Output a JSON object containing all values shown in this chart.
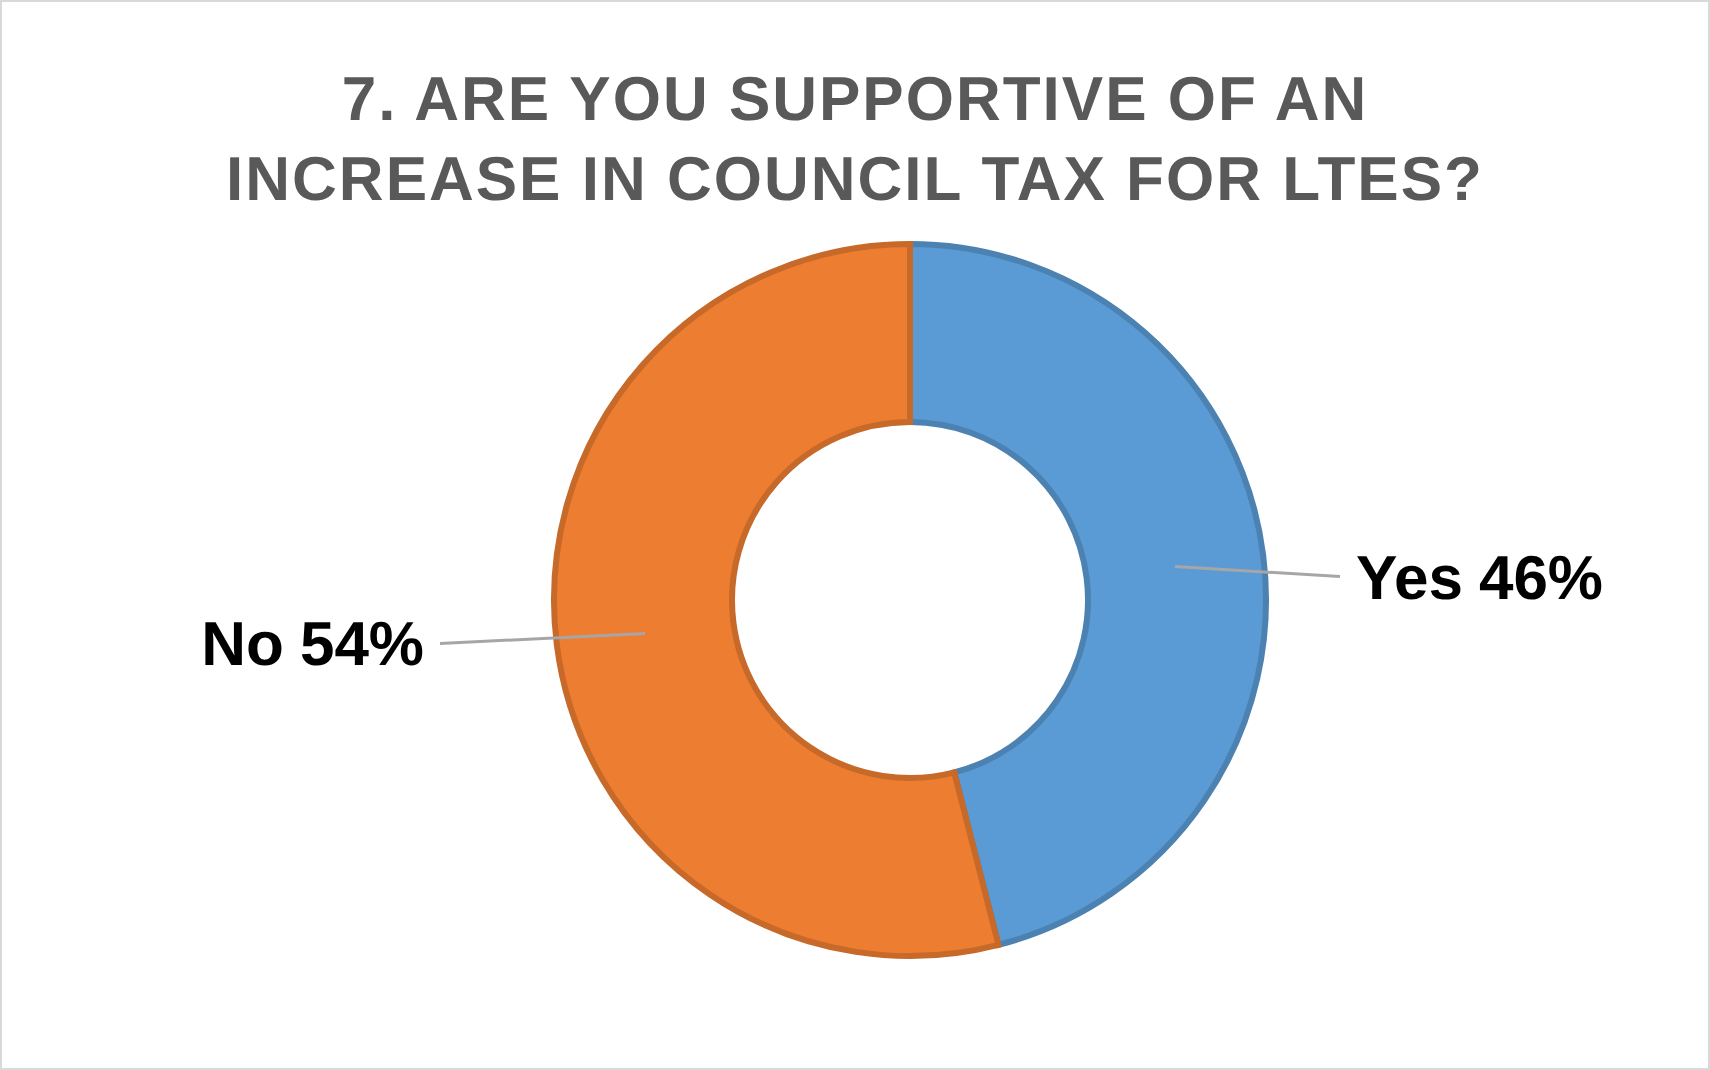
{
  "chart_data": {
    "type": "donut",
    "title": "7. ARE YOU SUPPORTIVE OF AN\nINCREASE IN COUNCIL TAX FOR LTES?",
    "categories": [
      "Yes",
      "No"
    ],
    "values": [
      46,
      54
    ],
    "colors": [
      "#5b9bd5",
      "#ed7d31"
    ],
    "value_labels": [
      "46%",
      "54%"
    ]
  }
}
